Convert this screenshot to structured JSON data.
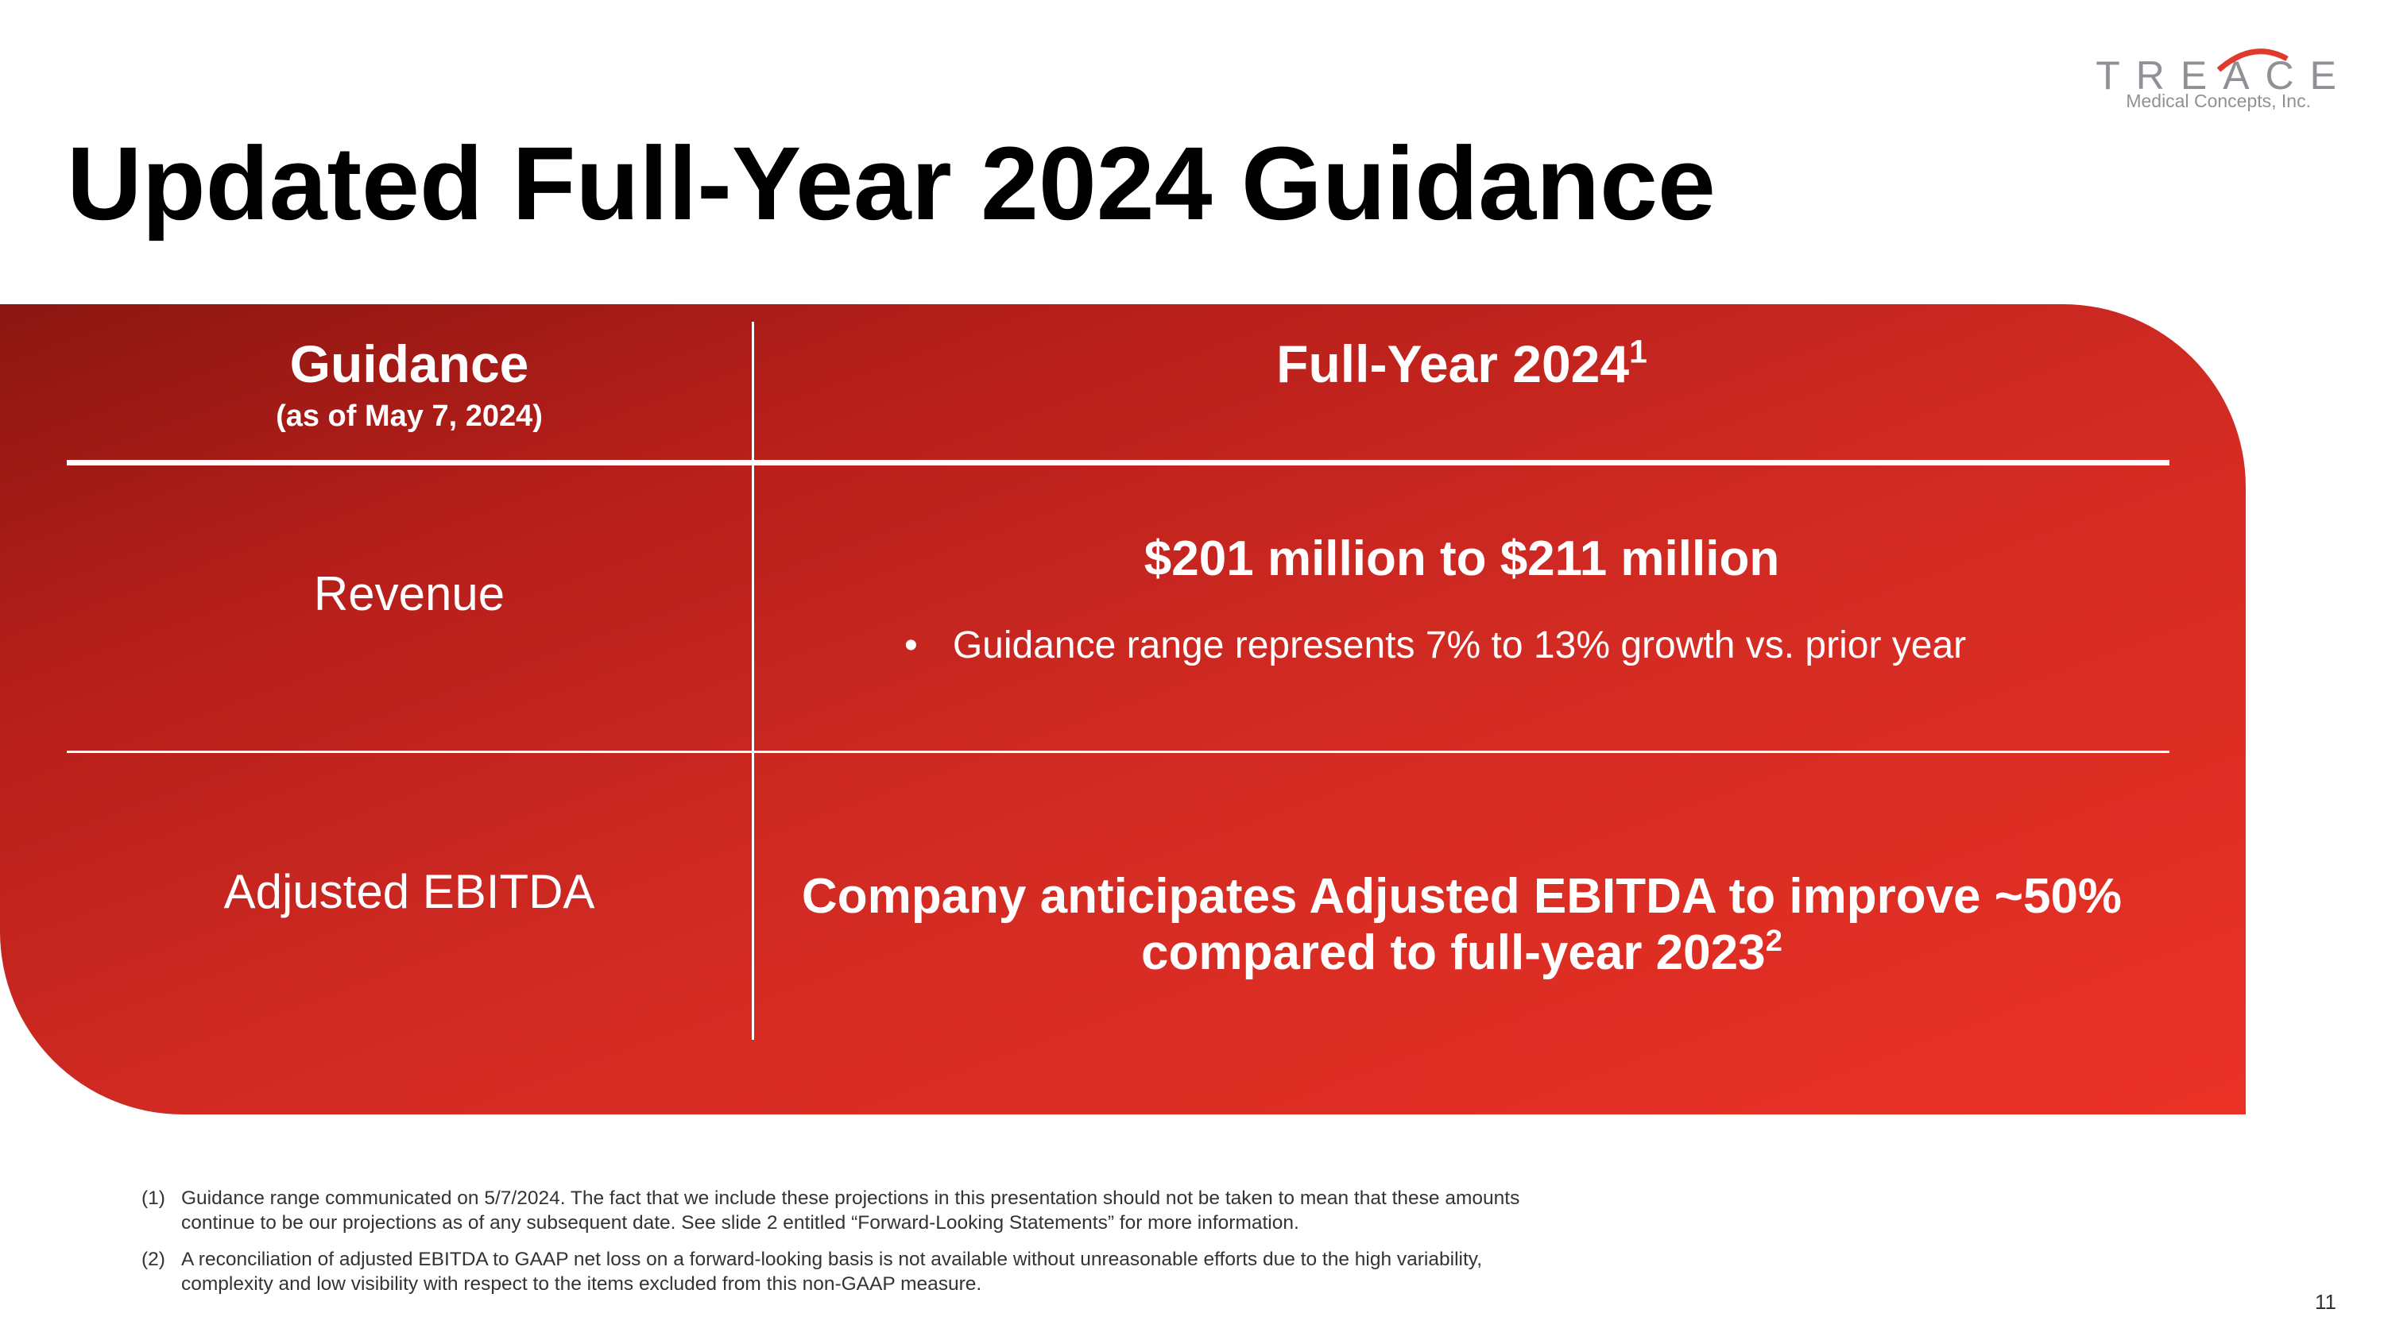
{
  "logo": {
    "wordmark": "TREACE",
    "sub": "Medical Concepts, Inc."
  },
  "title": "Updated Full-Year 2024 Guidance",
  "table": {
    "header_left": "Guidance",
    "header_left_sub": "(as of May 7, 2024)",
    "header_right": "Full-Year 2024",
    "header_right_sup": "1",
    "rows": [
      {
        "label": "Revenue",
        "value": "$201 million to $211 million",
        "bullet": "Guidance range represents 7% to 13% growth vs. prior year"
      },
      {
        "label": "Adjusted EBITDA",
        "value_line1": "Company anticipates Adjusted EBITDA to improve ~50%",
        "value_line2": "compared to full-year 2023",
        "value_sup": "2"
      }
    ]
  },
  "footnotes": [
    {
      "num": "(1)",
      "text": "Guidance range communicated on 5/7/2024. The fact that we include these projections in this presentation should not be taken to mean that these amounts continue to be our projections as of any subsequent date. See slide 2 entitled “Forward-Looking Statements” for more information."
    },
    {
      "num": "(2)",
      "text": "A reconciliation of adjusted EBITDA to GAAP net loss on a forward-looking basis is not available without unreasonable efforts due to the high variability, complexity and low visibility with respect to the items excluded from this non-GAAP measure."
    }
  ],
  "page_number": "11",
  "colors": {
    "panel_dark": "#8c1611",
    "panel_bright": "#ea3126",
    "logo_gray": "#8e9196"
  }
}
